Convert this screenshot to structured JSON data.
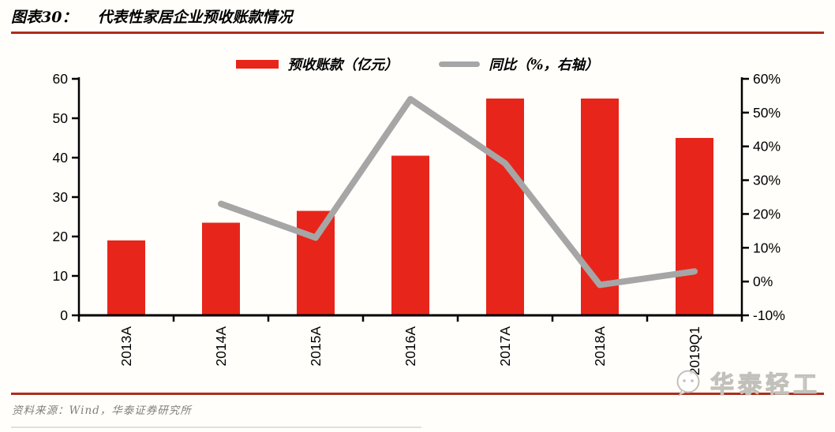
{
  "header": {
    "label": "图表30：",
    "title": "代表性家居企业预收账款情况"
  },
  "legend": {
    "bar_label": "预收账款（亿元）",
    "line_label": "同比（%，右轴）"
  },
  "footer": {
    "source": "资料来源：Wind，华泰证券研究所"
  },
  "watermark": {
    "text": "华泰轻工",
    "icon": "smiley-bubble-icon"
  },
  "colors": {
    "bar": "#e8251a",
    "line": "#a6a6a6",
    "rule": "#ad2d1d",
    "axis": "#000000",
    "tick_text": "#000000",
    "source_text": "#7f7f7f",
    "watermark": "#c2c0ba",
    "background": "#fffefa"
  },
  "chart_data": {
    "type": "combo",
    "categories": [
      "2013A",
      "2014A",
      "2015A",
      "2016A",
      "2017A",
      "2018A",
      "2019Q1"
    ],
    "series": [
      {
        "name": "预收账款（亿元）",
        "type": "bar",
        "axis": "left",
        "color": "#e8251a",
        "values": [
          19,
          23.5,
          26.5,
          40.5,
          55,
          55,
          45
        ]
      },
      {
        "name": "同比（%，右轴）",
        "type": "line",
        "axis": "right",
        "color": "#a6a6a6",
        "values": [
          null,
          23,
          13,
          54,
          35,
          -1,
          3
        ]
      }
    ],
    "left_axis": {
      "min": 0,
      "max": 60,
      "tick_step": 10,
      "tick_labels": [
        "0",
        "10",
        "20",
        "30",
        "40",
        "50",
        "60"
      ]
    },
    "right_axis": {
      "min": -10,
      "max": 60,
      "tick_step": 10,
      "tick_labels": [
        "-10%",
        "0%",
        "10%",
        "20%",
        "30%",
        "40%",
        "50%",
        "60%"
      ]
    },
    "grid": false,
    "legend_position": "top-center",
    "x_tick_label_rotation": -90
  }
}
